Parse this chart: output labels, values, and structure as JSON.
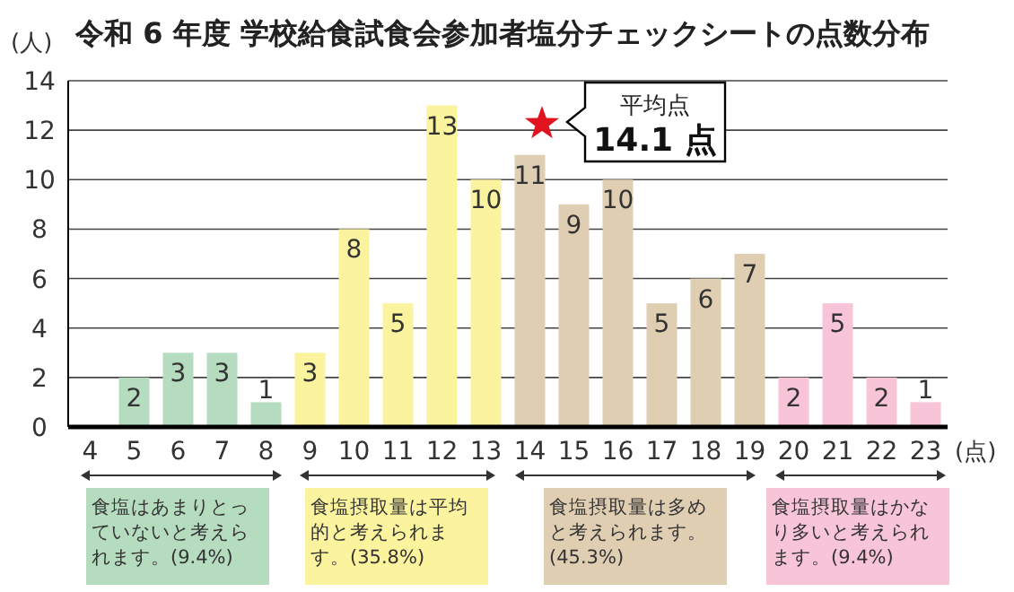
{
  "chart_data": {
    "type": "bar",
    "title": "令和 6 年度 学校給食試食会参加者塩分チェックシートの点数分布",
    "ylabel": "(人)",
    "xlabel": "(点)",
    "categories": [
      "4",
      "5",
      "6",
      "7",
      "8",
      "9",
      "10",
      "11",
      "12",
      "13",
      "14",
      "15",
      "16",
      "17",
      "18",
      "19",
      "20",
      "21",
      "22",
      "23"
    ],
    "values": [
      0,
      2,
      3,
      3,
      1,
      3,
      8,
      5,
      13,
      10,
      11,
      9,
      10,
      5,
      6,
      7,
      2,
      5,
      2,
      1
    ],
    "value_labels": [
      null,
      "2",
      "3",
      "3",
      "1",
      "3",
      "8",
      "5",
      "13",
      "10",
      "11",
      "9",
      "10",
      "5",
      "6",
      "7",
      "2",
      "5",
      "2",
      "1"
    ],
    "colors": [
      "#b6dcc0",
      "#b6dcc0",
      "#b6dcc0",
      "#b6dcc0",
      "#b6dcc0",
      "#fbf39d",
      "#fbf39d",
      "#fbf39d",
      "#fbf39d",
      "#fbf39d",
      "#e0ceb2",
      "#e0ceb2",
      "#e0ceb2",
      "#e0ceb2",
      "#e0ceb2",
      "#e0ceb2",
      "#f8c4d8",
      "#f8c4d8",
      "#f8c4d8",
      "#f8c4d8"
    ],
    "ylim": [
      0,
      14
    ],
    "yticks": [
      0,
      2,
      4,
      6,
      8,
      10,
      12,
      14
    ],
    "grid": "y",
    "annotations": [
      "平均点 14.1 点",
      "食塩はあまりとっていないと考えられます。(9.4%)",
      "食塩摂取量は平均的と考えられます。(35.8%)",
      "食塩摂取量は多めと考えられます。(45.3%)",
      "食塩摂取量はかなり多いと考えられます。(9.4%)"
    ]
  }
}
